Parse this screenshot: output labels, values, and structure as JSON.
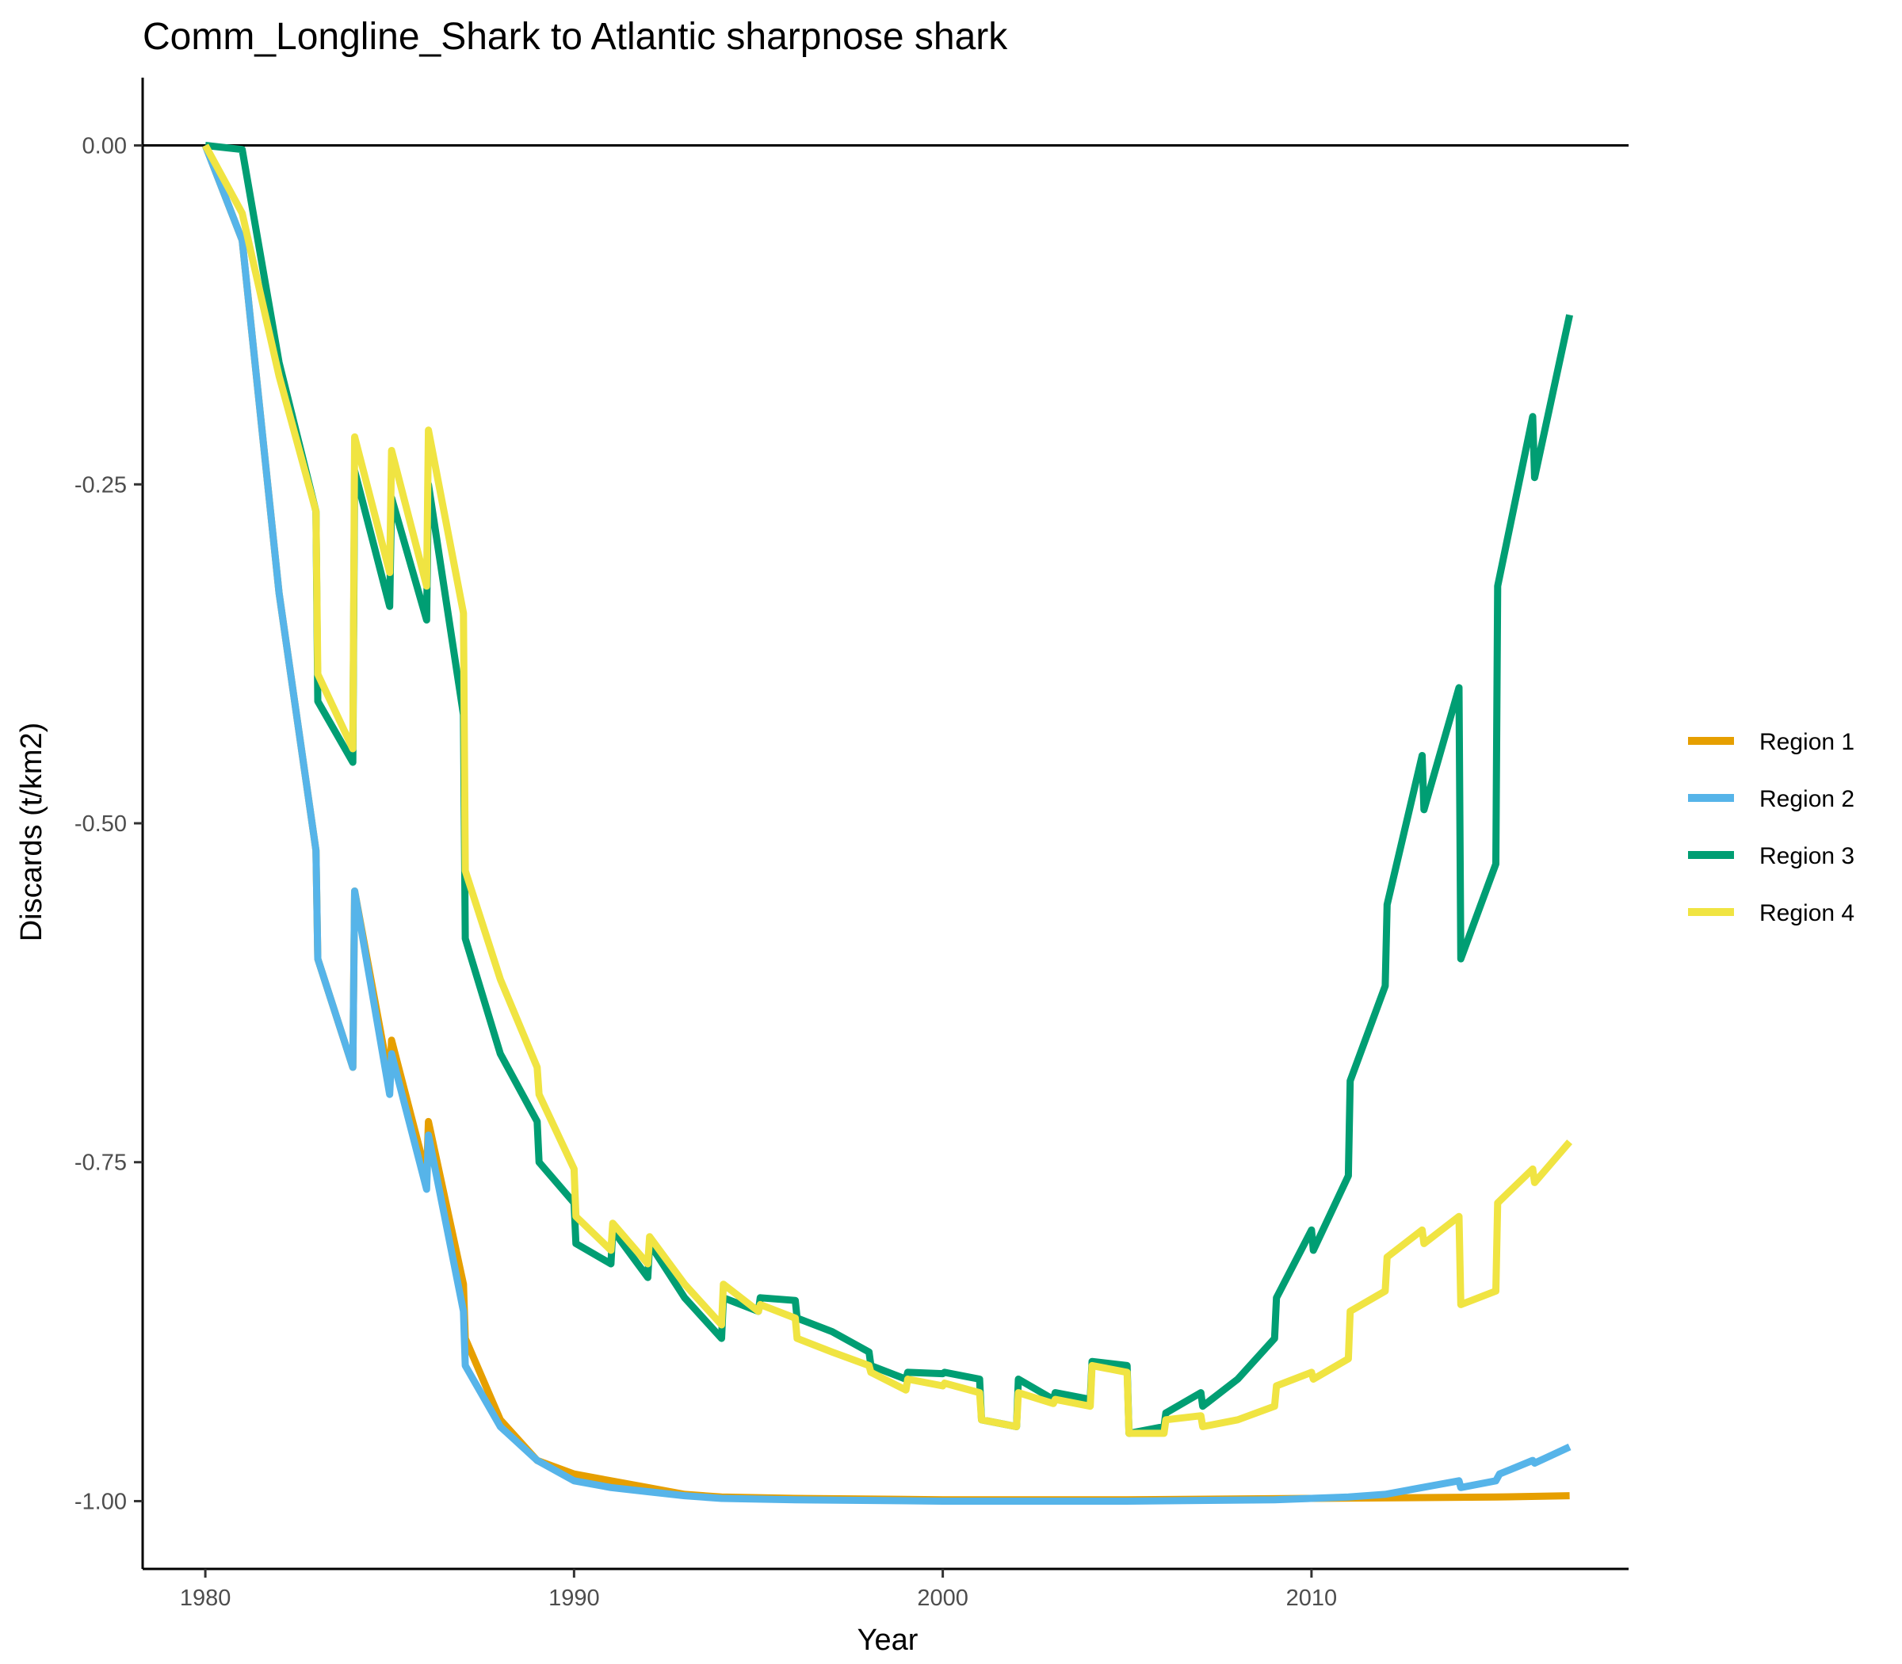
{
  "chart_data": {
    "type": "line",
    "title": "Comm_Longline_Shark to Atlantic sharpnose shark",
    "xlabel": "Year",
    "ylabel": "Discards (t/km2)",
    "xlim": [
      1978.3,
      2018.6
    ],
    "ylim": [
      -1.05,
      0.05
    ],
    "x_ticks": [
      1980,
      1990,
      2000,
      2010
    ],
    "x_tick_labels": [
      "1980",
      "1990",
      "2000",
      "2010"
    ],
    "y_ticks": [
      0,
      -0.25,
      -0.5,
      -0.75,
      -1.0
    ],
    "y_tick_labels": [
      "0.00",
      "-0.25",
      "-0.50",
      "-0.75",
      "-1.00"
    ],
    "reference_line": 0,
    "legend_position": "right",
    "grid": false,
    "series": [
      {
        "name": "Region 1",
        "color": "#E69F00",
        "points": [
          [
            1980,
            0
          ],
          [
            1981,
            -0.07
          ],
          [
            1982,
            -0.33
          ],
          [
            1983,
            -0.52
          ],
          [
            1983.05,
            -0.6
          ],
          [
            1984,
            -0.68
          ],
          [
            1984.05,
            -0.55
          ],
          [
            1985,
            -0.69
          ],
          [
            1985.05,
            -0.66
          ],
          [
            1986,
            -0.76
          ],
          [
            1986.05,
            -0.72
          ],
          [
            1987,
            -0.84
          ],
          [
            1987.05,
            -0.88
          ],
          [
            1988,
            -0.94
          ],
          [
            1989,
            -0.97
          ],
          [
            1990,
            -0.98
          ],
          [
            1991,
            -0.985
          ],
          [
            1992,
            -0.99
          ],
          [
            1993,
            -0.995
          ],
          [
            1994,
            -0.997
          ],
          [
            1996,
            -0.998
          ],
          [
            2000,
            -0.999
          ],
          [
            2005,
            -0.999
          ],
          [
            2010,
            -0.998
          ],
          [
            2015,
            -0.997
          ],
          [
            2017,
            -0.996
          ]
        ]
      },
      {
        "name": "Region 2",
        "color": "#56B4E9",
        "points": [
          [
            1980,
            0
          ],
          [
            1981,
            -0.07
          ],
          [
            1982,
            -0.33
          ],
          [
            1983,
            -0.52
          ],
          [
            1983.05,
            -0.6
          ],
          [
            1984,
            -0.68
          ],
          [
            1984.05,
            -0.55
          ],
          [
            1985,
            -0.7
          ],
          [
            1985.05,
            -0.67
          ],
          [
            1986,
            -0.77
          ],
          [
            1986.05,
            -0.73
          ],
          [
            1987,
            -0.86
          ],
          [
            1987.05,
            -0.9
          ],
          [
            1988,
            -0.945
          ],
          [
            1989,
            -0.97
          ],
          [
            1990,
            -0.985
          ],
          [
            1991,
            -0.99
          ],
          [
            1992,
            -0.993
          ],
          [
            1993,
            -0.996
          ],
          [
            1994,
            -0.998
          ],
          [
            1996,
            -0.999
          ],
          [
            2000,
            -1.0
          ],
          [
            2005,
            -1.0
          ],
          [
            2009,
            -0.999
          ],
          [
            2011,
            -0.997
          ],
          [
            2012,
            -0.995
          ],
          [
            2013,
            -0.99
          ],
          [
            2014,
            -0.985
          ],
          [
            2014.05,
            -0.99
          ],
          [
            2015,
            -0.985
          ],
          [
            2015.1,
            -0.98
          ],
          [
            2016,
            -0.97
          ],
          [
            2016.05,
            -0.972
          ],
          [
            2017,
            -0.96
          ]
        ]
      },
      {
        "name": "Region 3",
        "color": "#009E73",
        "points": [
          [
            1980,
            0
          ],
          [
            1981,
            -0.003
          ],
          [
            1982,
            -0.16
          ],
          [
            1983,
            -0.27
          ],
          [
            1983.05,
            -0.41
          ],
          [
            1984,
            -0.455
          ],
          [
            1984.05,
            -0.24
          ],
          [
            1985,
            -0.34
          ],
          [
            1985.05,
            -0.26
          ],
          [
            1986,
            -0.35
          ],
          [
            1986.05,
            -0.25
          ],
          [
            1987,
            -0.42
          ],
          [
            1987.05,
            -0.585
          ],
          [
            1988,
            -0.67
          ],
          [
            1989,
            -0.72
          ],
          [
            1989.05,
            -0.75
          ],
          [
            1990,
            -0.78
          ],
          [
            1990.05,
            -0.81
          ],
          [
            1991,
            -0.825
          ],
          [
            1991.05,
            -0.8
          ],
          [
            1992,
            -0.835
          ],
          [
            1992.05,
            -0.81
          ],
          [
            1993,
            -0.85
          ],
          [
            1994,
            -0.88
          ],
          [
            1994.05,
            -0.85
          ],
          [
            1995,
            -0.86
          ],
          [
            1995.05,
            -0.85
          ],
          [
            1996,
            -0.852
          ],
          [
            1996.05,
            -0.865
          ],
          [
            1997,
            -0.875
          ],
          [
            1998,
            -0.89
          ],
          [
            1998.05,
            -0.9
          ],
          [
            1999,
            -0.91
          ],
          [
            1999.05,
            -0.905
          ],
          [
            2000,
            -0.906
          ],
          [
            2000.05,
            -0.905
          ],
          [
            2001,
            -0.91
          ],
          [
            2001.05,
            -0.94
          ],
          [
            2002,
            -0.945
          ],
          [
            2002.05,
            -0.91
          ],
          [
            2003,
            -0.925
          ],
          [
            2003.05,
            -0.92
          ],
          [
            2004,
            -0.925
          ],
          [
            2004.05,
            -0.897
          ],
          [
            2005,
            -0.9
          ],
          [
            2005.05,
            -0.95
          ],
          [
            2006,
            -0.945
          ],
          [
            2006.05,
            -0.935
          ],
          [
            2007,
            -0.92
          ],
          [
            2007.05,
            -0.93
          ],
          [
            2008,
            -0.91
          ],
          [
            2009,
            -0.88
          ],
          [
            2009.05,
            -0.85
          ],
          [
            2010,
            -0.8
          ],
          [
            2010.05,
            -0.815
          ],
          [
            2011,
            -0.76
          ],
          [
            2011.05,
            -0.69
          ],
          [
            2012,
            -0.62
          ],
          [
            2012.05,
            -0.56
          ],
          [
            2013,
            -0.45
          ],
          [
            2013.05,
            -0.49
          ],
          [
            2014,
            -0.4
          ],
          [
            2014.05,
            -0.6
          ],
          [
            2015,
            -0.53
          ],
          [
            2015.05,
            -0.325
          ],
          [
            2016,
            -0.2
          ],
          [
            2016.05,
            -0.245
          ],
          [
            2017,
            -0.125
          ]
        ]
      },
      {
        "name": "Region 4",
        "color": "#F0E442",
        "points": [
          [
            1980,
            0
          ],
          [
            1981,
            -0.05
          ],
          [
            1982,
            -0.17
          ],
          [
            1983,
            -0.27
          ],
          [
            1983.05,
            -0.39
          ],
          [
            1984,
            -0.445
          ],
          [
            1984.05,
            -0.215
          ],
          [
            1985,
            -0.315
          ],
          [
            1985.05,
            -0.225
          ],
          [
            1986,
            -0.325
          ],
          [
            1986.05,
            -0.21
          ],
          [
            1987,
            -0.345
          ],
          [
            1987.05,
            -0.535
          ],
          [
            1988,
            -0.615
          ],
          [
            1989,
            -0.68
          ],
          [
            1989.05,
            -0.7
          ],
          [
            1990,
            -0.755
          ],
          [
            1990.05,
            -0.79
          ],
          [
            1991,
            -0.815
          ],
          [
            1991.05,
            -0.795
          ],
          [
            1992,
            -0.825
          ],
          [
            1992.05,
            -0.805
          ],
          [
            1993,
            -0.84
          ],
          [
            1994,
            -0.87
          ],
          [
            1994.05,
            -0.84
          ],
          [
            1995,
            -0.86
          ],
          [
            1995.05,
            -0.855
          ],
          [
            1996,
            -0.865
          ],
          [
            1996.05,
            -0.88
          ],
          [
            1997,
            -0.89
          ],
          [
            1998,
            -0.9
          ],
          [
            1998.05,
            -0.905
          ],
          [
            1999,
            -0.918
          ],
          [
            1999.05,
            -0.91
          ],
          [
            2000,
            -0.915
          ],
          [
            2000.05,
            -0.913
          ],
          [
            2001,
            -0.92
          ],
          [
            2001.05,
            -0.94
          ],
          [
            2002,
            -0.945
          ],
          [
            2002.05,
            -0.92
          ],
          [
            2003,
            -0.928
          ],
          [
            2003.05,
            -0.925
          ],
          [
            2004,
            -0.93
          ],
          [
            2004.05,
            -0.9
          ],
          [
            2005,
            -0.905
          ],
          [
            2005.05,
            -0.95
          ],
          [
            2006,
            -0.95
          ],
          [
            2006.05,
            -0.94
          ],
          [
            2007,
            -0.937
          ],
          [
            2007.05,
            -0.945
          ],
          [
            2008,
            -0.94
          ],
          [
            2009,
            -0.93
          ],
          [
            2009.05,
            -0.915
          ],
          [
            2010,
            -0.905
          ],
          [
            2010.05,
            -0.91
          ],
          [
            2011,
            -0.895
          ],
          [
            2011.05,
            -0.86
          ],
          [
            2012,
            -0.845
          ],
          [
            2012.05,
            -0.82
          ],
          [
            2013,
            -0.8
          ],
          [
            2013.05,
            -0.81
          ],
          [
            2014,
            -0.79
          ],
          [
            2014.05,
            -0.855
          ],
          [
            2015,
            -0.845
          ],
          [
            2015.05,
            -0.78
          ],
          [
            2016,
            -0.755
          ],
          [
            2016.05,
            -0.765
          ],
          [
            2017,
            -0.735
          ]
        ]
      }
    ]
  }
}
